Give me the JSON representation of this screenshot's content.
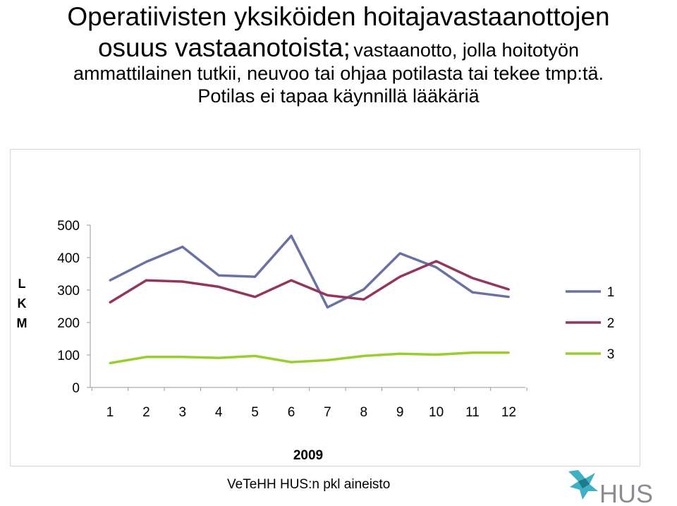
{
  "title": {
    "main": "Operatiivisten yksiköiden hoitajavastaanottojen",
    "main_line2": "osuus vastaanotoista;",
    "desc_part1": "vastaanotto, jolla hoitotyön",
    "desc_part2": "ammattilainen tutkii, neuvoo tai ohjaa potilasta tai tekee tmp:tä.",
    "desc_part3": "Potilas ei tapaa käynnillä lääkäriä"
  },
  "chart_data": {
    "type": "line",
    "categories": [
      "1",
      "2",
      "3",
      "4",
      "5",
      "6",
      "7",
      "8",
      "9",
      "10",
      "11",
      "12"
    ],
    "series": [
      {
        "name": "1",
        "color": "#6a72a3",
        "values": [
          330,
          387,
          433,
          345,
          341,
          467,
          247,
          302,
          413,
          370,
          293,
          279
        ]
      },
      {
        "name": "2",
        "color": "#93365e",
        "values": [
          262,
          330,
          326,
          310,
          279,
          330,
          284,
          271,
          341,
          389,
          337,
          302
        ]
      },
      {
        "name": "3",
        "color": "#9ccd2e",
        "values": [
          75,
          94,
          94,
          91,
          97,
          78,
          84,
          97,
          104,
          101,
          107,
          107
        ]
      }
    ],
    "ylabel": "L K M",
    "ylabel_lines": [
      "L",
      "K",
      "M"
    ],
    "xlabel": "2009",
    "ylim": [
      0,
      500
    ],
    "yticks": [
      "0",
      "100",
      "200",
      "300",
      "400",
      "500"
    ],
    "grid": false,
    "legend_position": "right"
  },
  "source_note": "VeTeHH HUS:n pkl aineisto",
  "logo": {
    "text": "HUS",
    "icon": "hus-logo-icon",
    "colors": [
      "#3fb0c4",
      "#1b7a8c",
      "#8a8d91"
    ]
  }
}
